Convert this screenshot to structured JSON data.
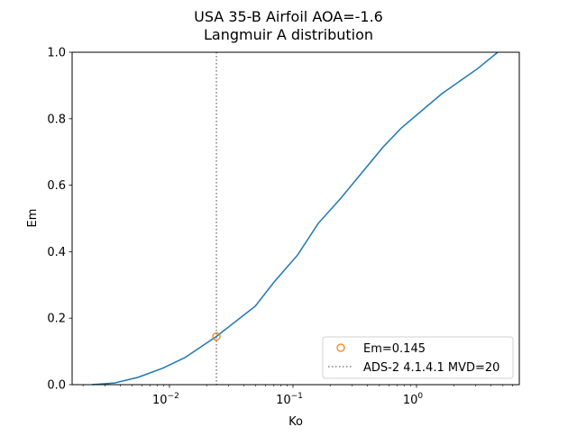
{
  "chart_data": {
    "type": "line",
    "title": "USA 35-B Airfoil AOA=-1.6",
    "subtitle": "Langmuir A distribution",
    "xlabel": "Ko",
    "ylabel": "Em",
    "xscale": "log",
    "xlim": [
      0.00163,
      6.79
    ],
    "ylim": [
      0,
      1.0
    ],
    "x_major_ticks": [
      0.01,
      0.1,
      1
    ],
    "x_tick_labels": [
      "10",
      "10",
      "10"
    ],
    "x_tick_exponents": [
      "−2",
      "−1",
      "0"
    ],
    "y_ticks": [
      0,
      0.2,
      0.4,
      0.6,
      0.8,
      1.0
    ],
    "y_tick_labels": [
      "0.0",
      "0.2",
      "0.4",
      "0.6",
      "0.8",
      "1.0"
    ],
    "grid": false,
    "legend_placement": "lower-right",
    "series": [
      {
        "style": "line",
        "color": "#1f77b4",
        "x": [
          0.00236,
          0.00359,
          0.00556,
          0.00875,
          0.0133,
          0.024,
          0.0494,
          0.0715,
          0.109,
          0.16,
          0.244,
          0.537,
          0.752,
          1.6,
          3.13,
          4.54
        ],
        "y": [
          0.0,
          0.005,
          0.022,
          0.049,
          0.081,
          0.145,
          0.236,
          0.312,
          0.39,
          0.485,
          0.561,
          0.715,
          0.772,
          0.875,
          0.951,
          1.0
        ]
      },
      {
        "name": "Em=0.145",
        "style": "marker-open-circle",
        "color": "#ff7f0e",
        "x": [
          0.024
        ],
        "y": [
          0.145
        ]
      },
      {
        "name": "ADS-2 4.1.4.1 MVD=20",
        "style": "vertical-dotted-line",
        "color": "#808080",
        "x": [
          0.024
        ]
      }
    ]
  }
}
